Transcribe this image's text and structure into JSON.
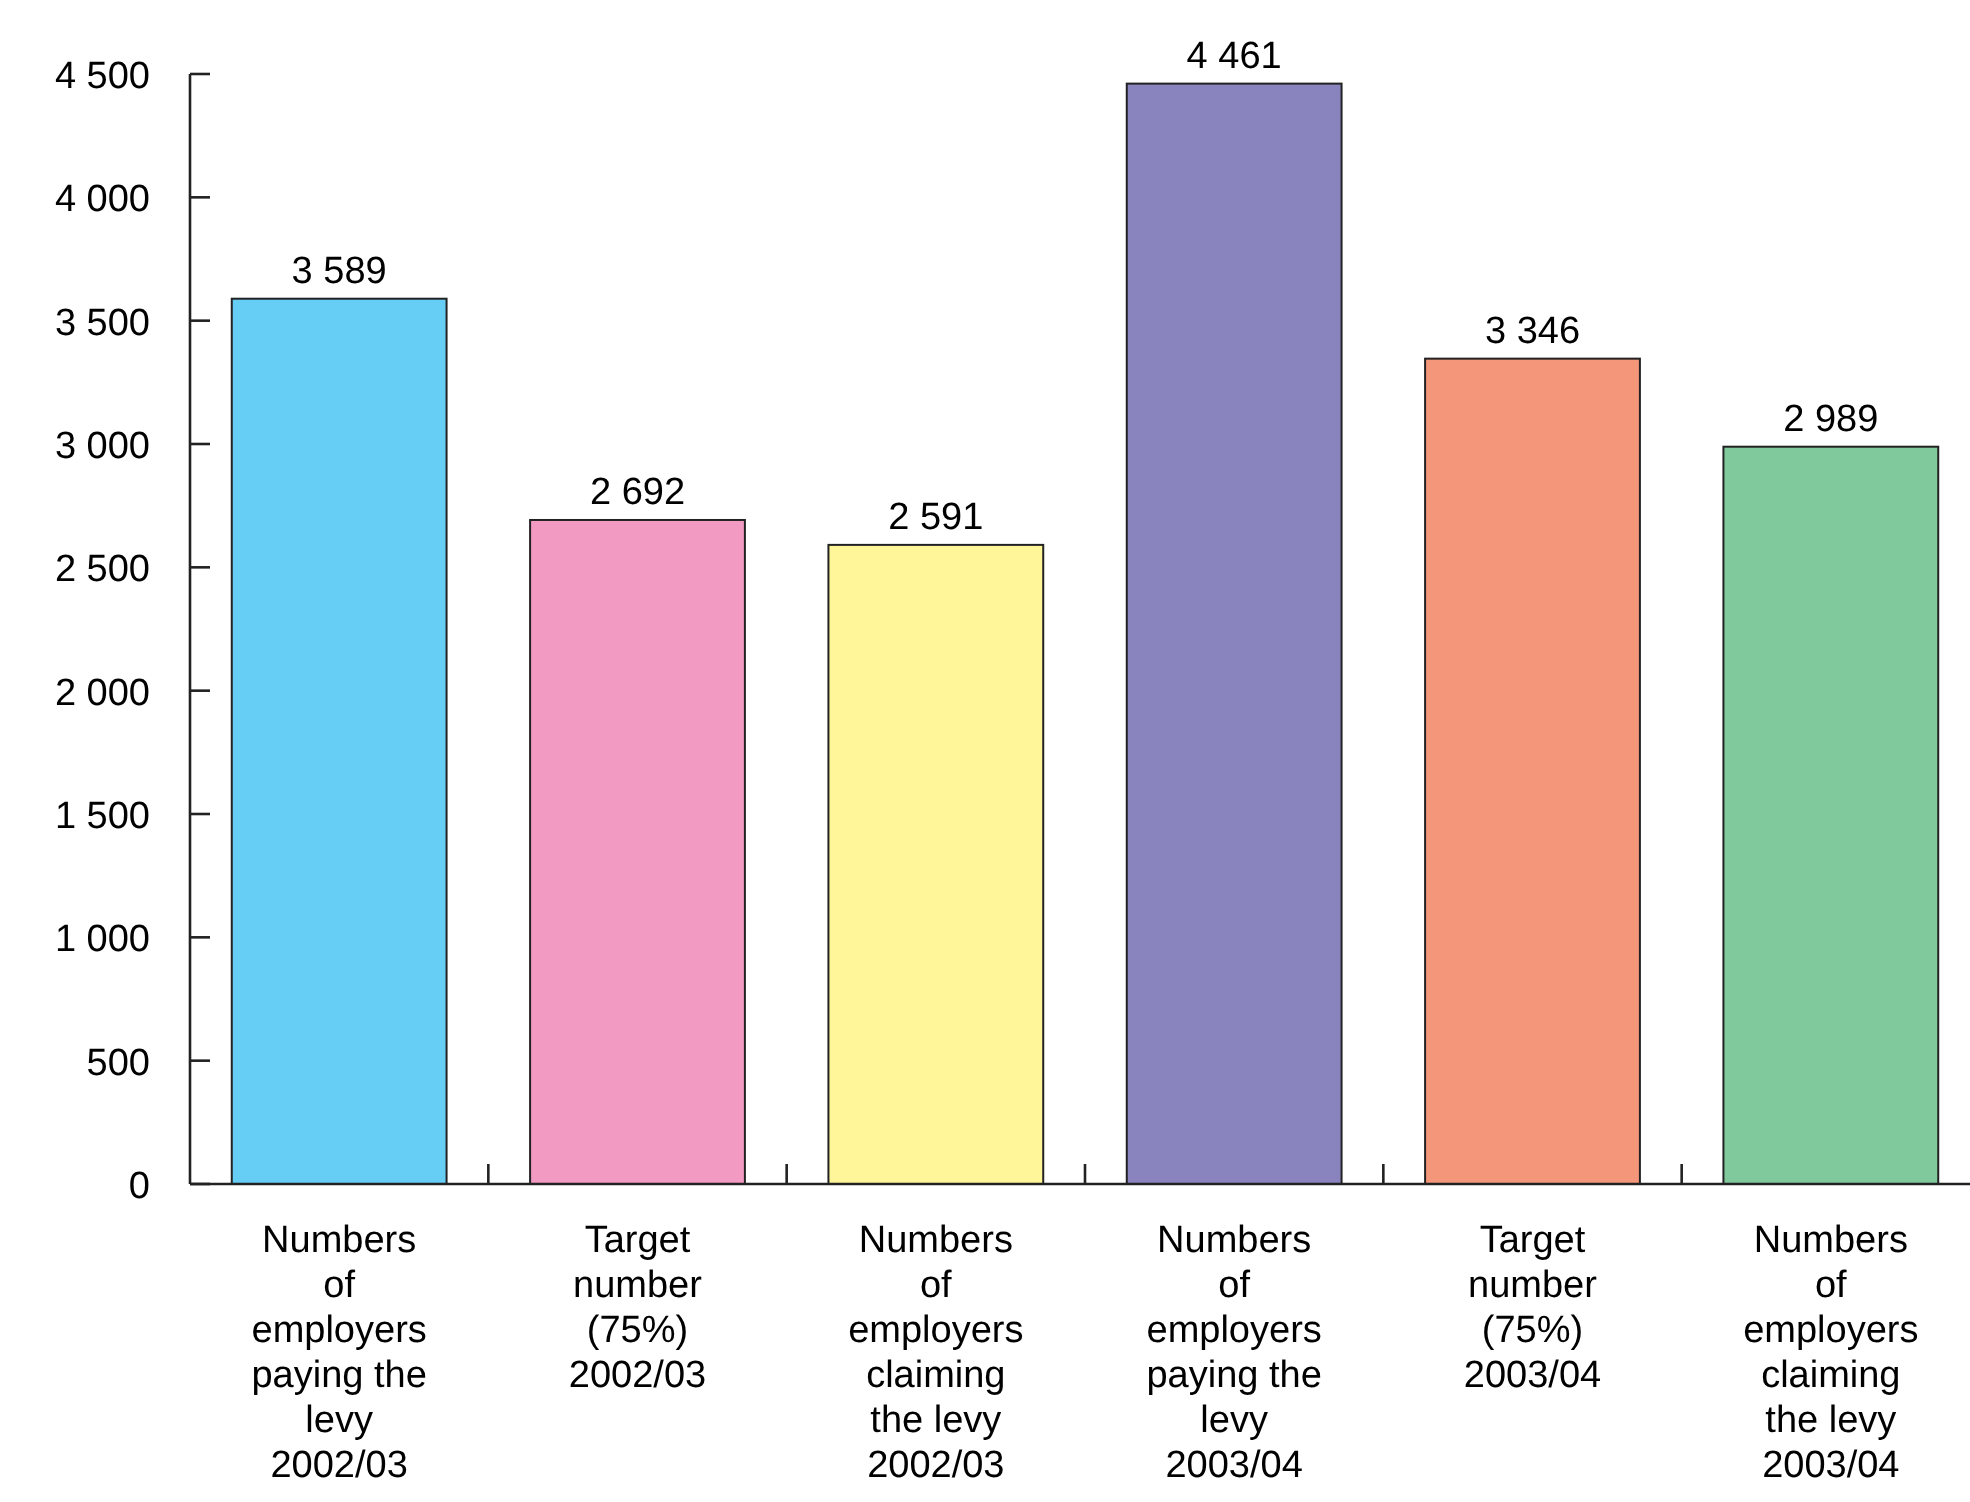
{
  "chart_data": {
    "type": "bar",
    "categories": [
      "Numbers\nof\nemployers\npaying the\nlevy\n2002/03",
      "Target\nnumber\n(75%)\n2002/03",
      "Numbers\nof\nemployers\nclaiming\nthe levy\n2002/03",
      "Numbers\nof\nemployers\npaying the\nlevy\n2003/04",
      "Target\nnumber\n(75%)\n2003/04",
      "Numbers\nof\nemployers\nclaiming\nthe levy\n2003/04"
    ],
    "values": [
      3589,
      2692,
      2591,
      4461,
      3346,
      2989
    ],
    "value_labels": [
      "3 589",
      "2 692",
      "2 591",
      "4 461",
      "3 346",
      "2 989"
    ],
    "colors": [
      "#66cdf4",
      "#f39ac2",
      "#fff69a",
      "#8983be",
      "#f4967a",
      "#80c99c"
    ],
    "ylim": [
      0,
      4500
    ],
    "yticks": [
      0,
      {
        "value": 500,
        "label": "500"
      },
      {
        "value": 1000,
        "label": "1 000"
      },
      {
        "value": 1500,
        "label": "1 500"
      },
      {
        "value": 2000,
        "label": "2 000"
      },
      {
        "value": 2500,
        "label": "2 500"
      },
      {
        "value": 3000,
        "label": "3 000"
      },
      {
        "value": 3500,
        "label": "3 500"
      },
      {
        "value": 4000,
        "label": "4 000"
      },
      {
        "value": 4500,
        "label": "4 500"
      }
    ],
    "grid": false
  }
}
